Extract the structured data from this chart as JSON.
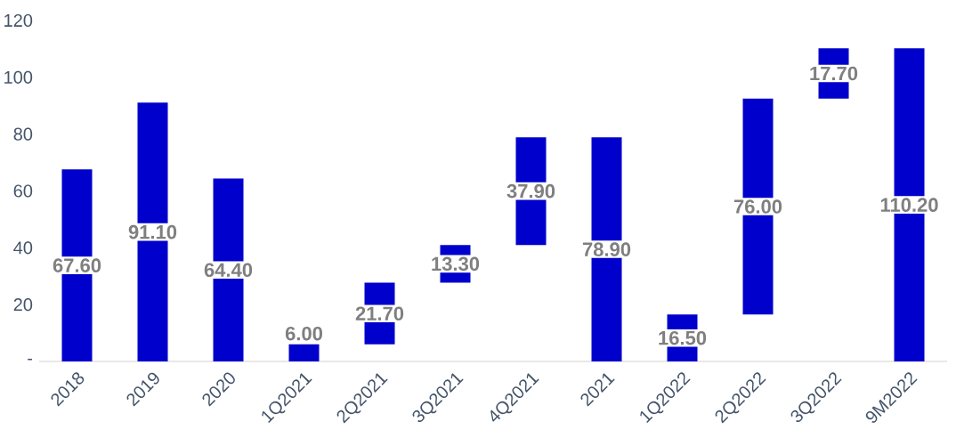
{
  "chart_data": {
    "type": "bar",
    "categories": [
      "2018",
      "2019",
      "2020",
      "1Q2021",
      "2Q2021",
      "3Q2021",
      "4Q2021",
      "2021",
      "1Q2022",
      "2Q2022",
      "3Q2022",
      "9M2022"
    ],
    "values": [
      67.6,
      91.1,
      64.4,
      6.0,
      21.7,
      13.3,
      37.9,
      78.9,
      16.5,
      76.0,
      17.7,
      110.2
    ],
    "base": [
      0,
      0,
      0,
      0,
      6.0,
      27.7,
      41.0,
      0,
      0,
      16.5,
      92.5,
      0
    ],
    "value_labels": [
      "67.60",
      "91.10",
      "64.40",
      "6.00",
      "21.70",
      "13.30",
      "37.90",
      "78.90",
      "16.50",
      "76.00",
      "17.70",
      "110.20"
    ],
    "color": "#0000cc",
    "ylim": [
      0,
      120
    ],
    "yticks": [
      {
        "value": 0,
        "label": "-"
      },
      20,
      40,
      60,
      80,
      100,
      120
    ],
    "grid": false
  }
}
